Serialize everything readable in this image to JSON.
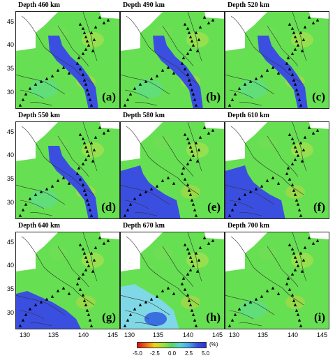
{
  "panels": [
    {
      "depth": "Depth 460 km",
      "letter": "(a)",
      "anomaly": "slab"
    },
    {
      "depth": "Depth 490 km",
      "letter": "(b)",
      "anomaly": "slab"
    },
    {
      "depth": "Depth 520 km",
      "letter": "(c)",
      "anomaly": "slab"
    },
    {
      "depth": "Depth 550 km",
      "letter": "(d)",
      "anomaly": "slab"
    },
    {
      "depth": "Depth 580 km",
      "letter": "(e)",
      "anomaly": "west-fast"
    },
    {
      "depth": "Depth 610 km",
      "letter": "(f)",
      "anomaly": "west-fast"
    },
    {
      "depth": "Depth 640 km",
      "letter": "(g)",
      "anomaly": "southwest-fast"
    },
    {
      "depth": "Depth 670 km",
      "letter": "(h)",
      "anomaly": "southwest-light"
    },
    {
      "depth": "Depth 700 km",
      "letter": "(i)",
      "anomaly": "none"
    }
  ],
  "axes": {
    "y_ticks": [
      "45",
      "40",
      "35",
      "30"
    ],
    "x_ticks": [
      "130",
      "135",
      "140",
      "145"
    ]
  },
  "colorbar": {
    "ticks": [
      "-5.0",
      "-2.5",
      "0.0",
      "2.5",
      "5.0"
    ],
    "unit": "(%)",
    "colors": {
      "slow": "#e8241c",
      "mid_slow": "#f0c21a",
      "neutral": "#68e35a",
      "mid_fast": "#5fd8e6",
      "fast": "#3a4fe0"
    }
  }
}
